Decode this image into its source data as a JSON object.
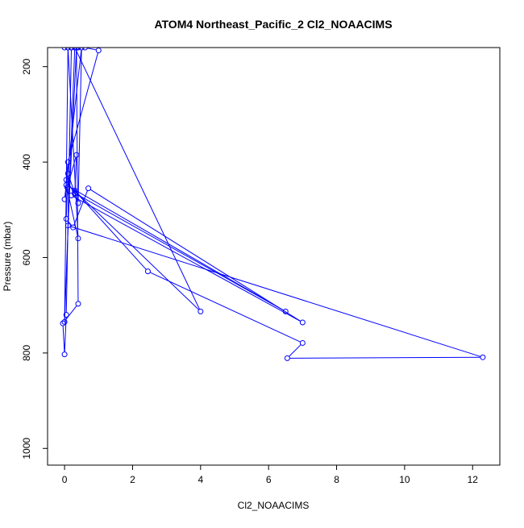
{
  "chart_data": {
    "type": "line",
    "title": "ATOM4 Northeast_Pacific_2 Cl2_NOAACIMS",
    "xlabel": "Cl2_NOAACIMS",
    "ylabel": "Pressure (mbar)",
    "xlim": [
      -0.5,
      12.8
    ],
    "ylim": [
      1035,
      160
    ],
    "y_reversed": true,
    "grid": false,
    "legend": "none",
    "x_ticks": [
      0,
      2,
      4,
      6,
      8,
      10,
      12
    ],
    "x_tick_labels": [
      "0",
      "2",
      "4",
      "6",
      "8",
      "10",
      "12"
    ],
    "y_ticks": [
      200,
      400,
      600,
      800,
      1000
    ],
    "y_tick_labels": [
      "200",
      "400",
      "600",
      "800",
      "1000"
    ],
    "line_color": "#0000ff",
    "series": [
      {
        "x": [
          0.0,
          0.2,
          0.4,
          0.6,
          1.0,
          0.1,
          0.05,
          0.3,
          0.35,
          0.08,
          0.0,
          0.5,
          0.4,
          0.1,
          0.05,
          0.25,
          0.7,
          7.0,
          0.2,
          0.3,
          6.5,
          0.05,
          0.4,
          0.1,
          0.0,
          0.3,
          4.0,
          0.3,
          2.45,
          7.0,
          6.55,
          12.3,
          0.1,
          0.35,
          0.4,
          -0.05,
          0.0,
          0.05,
          0.2
        ],
        "y": [
          160,
          160,
          160,
          160,
          166,
          400,
          437,
          467,
          385,
          453,
          478,
          160,
          486,
          424,
          519,
          537,
          455,
          736,
          470,
          465,
          713,
          448,
          560,
          160,
          735,
          160,
          713,
          460,
          629,
          779,
          811,
          809,
          533,
          160,
          697,
          738,
          803,
          720,
          160
        ]
      }
    ]
  }
}
